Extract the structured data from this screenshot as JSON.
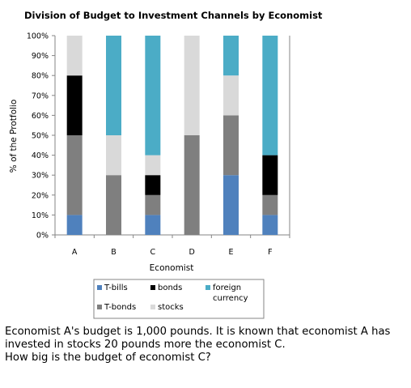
{
  "chart_data": {
    "type": "bar",
    "stacked": true,
    "percent": true,
    "title": "Division of Budget to Investment Channels by Economist",
    "xlabel": "Economist",
    "ylabel": "% of the Protfolio",
    "ylim": [
      0,
      100
    ],
    "yticks": [
      "0%",
      "10%",
      "20%",
      "30%",
      "40%",
      "50%",
      "60%",
      "70%",
      "80%",
      "90%",
      "100%"
    ],
    "grid": false,
    "legend_position": "bottom",
    "categories": [
      "A",
      "B",
      "C",
      "D",
      "E",
      "F"
    ],
    "series": [
      {
        "name": "T-bills",
        "color": "#4f81bd",
        "values": [
          10,
          0,
          10,
          0,
          30,
          10
        ]
      },
      {
        "name": "T-bonds",
        "color": "#7f7f7f",
        "values": [
          40,
          30,
          10,
          50,
          30,
          10
        ]
      },
      {
        "name": "bonds",
        "color": "#000000",
        "values": [
          30,
          0,
          10,
          0,
          0,
          20
        ]
      },
      {
        "name": "stocks",
        "color": "#d9d9d9",
        "values": [
          20,
          20,
          10,
          50,
          20,
          0
        ]
      },
      {
        "name": "foreign currency",
        "color": "#4bacc6",
        "values": [
          0,
          50,
          60,
          0,
          20,
          60
        ]
      }
    ],
    "legend_rows": [
      [
        "T-bills",
        "bonds",
        "foreign currency"
      ],
      [
        "T-bonds",
        "stocks"
      ]
    ]
  },
  "question": {
    "line1": "Economist A's budget is 1,000 pounds. It is known that economist A has",
    "line2": "invested in stocks 20 pounds more the economist C.",
    "line3": "How big is the budget of economist C?"
  }
}
